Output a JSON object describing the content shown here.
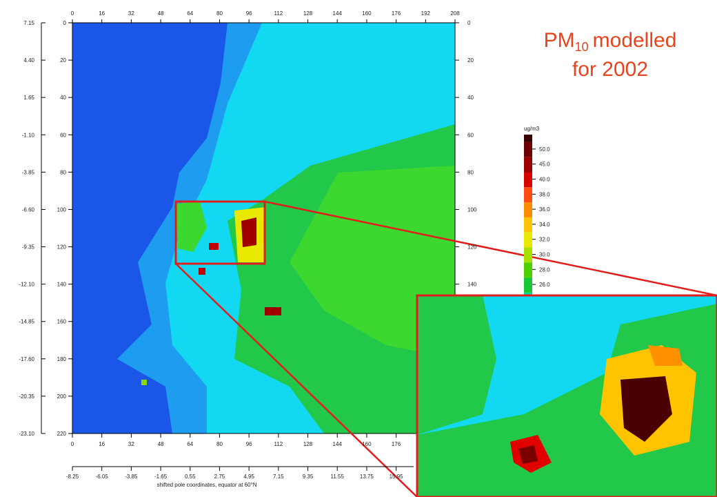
{
  "map": {
    "title": {
      "main": "PM",
      "sub": "10",
      "rest": "modelled",
      "line2": "for 2002"
    },
    "top_ticks": [
      "0",
      "16",
      "32",
      "48",
      "64",
      "80",
      "96",
      "112",
      "128",
      "144",
      "160",
      "176",
      "192",
      "208"
    ],
    "bottom_ticks": [
      "0",
      "16",
      "32",
      "48",
      "64",
      "80",
      "96",
      "112",
      "128",
      "144",
      "160",
      "176"
    ],
    "bottom_coords": [
      "-8.25",
      "-6.05",
      "-3.85",
      "-1.65",
      "0.55",
      "2.75",
      "4.95",
      "7.15",
      "9.35",
      "11.55",
      "13.75",
      "15.95"
    ],
    "x_axis_label": "shifted pole coordinates, equator at 60°N",
    "left_coords": [
      "7.15",
      "4.40",
      "1.65",
      "-1.10",
      "-3.85",
      "-6.60",
      "-9.35",
      "-12.10",
      "-14.85",
      "-17.60",
      "-20.35",
      "-23.10"
    ],
    "left_ticks": [
      "0",
      "20",
      "40",
      "60",
      "80",
      "100",
      "120",
      "140",
      "160",
      "180",
      "200",
      "220"
    ],
    "right_ticks": [
      "0",
      "20",
      "40",
      "60",
      "80",
      "100",
      "120",
      "140"
    ],
    "colorbar": {
      "unit": "ug/m3",
      "labels": [
        "50.0",
        "45.0",
        "40.0",
        "38.0",
        "36.0",
        "34.0",
        "32.0",
        "30.0",
        "28.0",
        "26.0"
      ],
      "colors": [
        "#3a0000",
        "#6e0000",
        "#9a0000",
        "#d80000",
        "#ff4a10",
        "#ff8c00",
        "#ffc400",
        "#e8e800",
        "#a8e000",
        "#50d000",
        "#18c838",
        "#00d8a0"
      ]
    }
  }
}
